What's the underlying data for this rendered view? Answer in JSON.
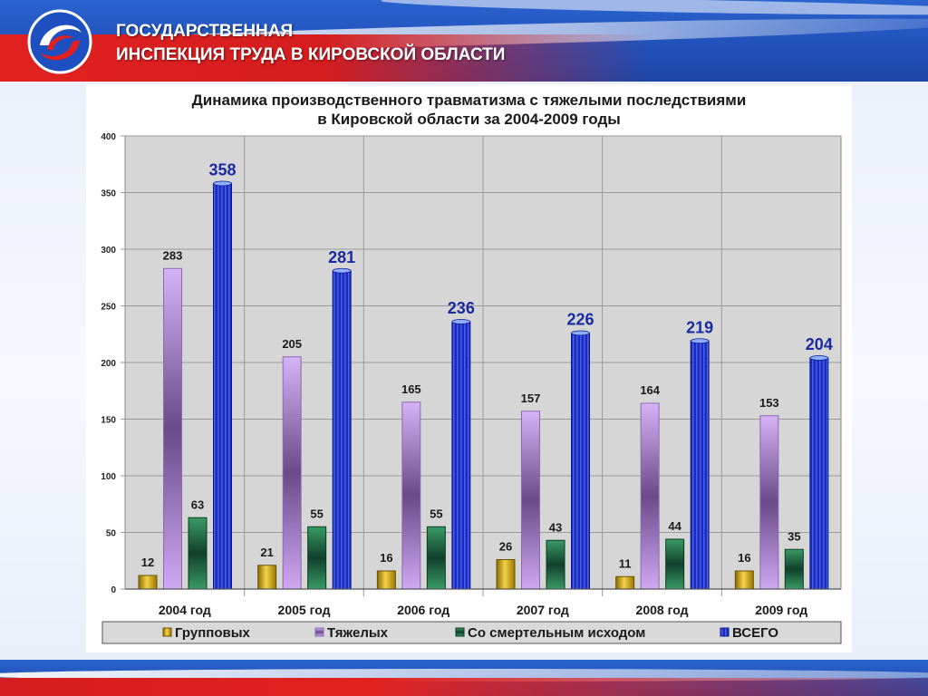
{
  "header": {
    "title_line1": "ГОСУДАРСТВЕННАЯ",
    "title_line2": "ИНСПЕКЦИЯ ТРУДА В КИРОВСКОЙ ОБЛАСТИ"
  },
  "colors": {
    "header_blue": "#2150b8",
    "header_red": "#d41d1f",
    "plot_bg": "#d3d3d3"
  },
  "chart_data": {
    "type": "bar",
    "title_line1": "Динамика производственного травматизма с тяжелыми последствиями",
    "title_line2": "в Кировской области за 2004-2009 годы",
    "categories": [
      "2004 год",
      "2005 год",
      "2006 год",
      "2007 год",
      "2008 год",
      "2009 год"
    ],
    "series": [
      {
        "name": "Групповых",
        "values": [
          12,
          21,
          16,
          26,
          11,
          16
        ],
        "color": "#d9b21a"
      },
      {
        "name": "Тяжелых",
        "values": [
          283,
          205,
          165,
          157,
          164,
          153
        ],
        "color": "#c9a2ee"
      },
      {
        "name": "Со смертельным исходом",
        "values": [
          63,
          55,
          55,
          43,
          44,
          35
        ],
        "color": "#2f8a5a"
      },
      {
        "name": "ВСЕГО",
        "values": [
          358,
          281,
          236,
          226,
          219,
          204
        ],
        "color": "#1b2fc4"
      }
    ],
    "ylim": [
      0,
      400
    ],
    "yticks": [
      0,
      50,
      100,
      150,
      200,
      250,
      300,
      350,
      400
    ],
    "grid": true,
    "legend_position": "bottom"
  }
}
